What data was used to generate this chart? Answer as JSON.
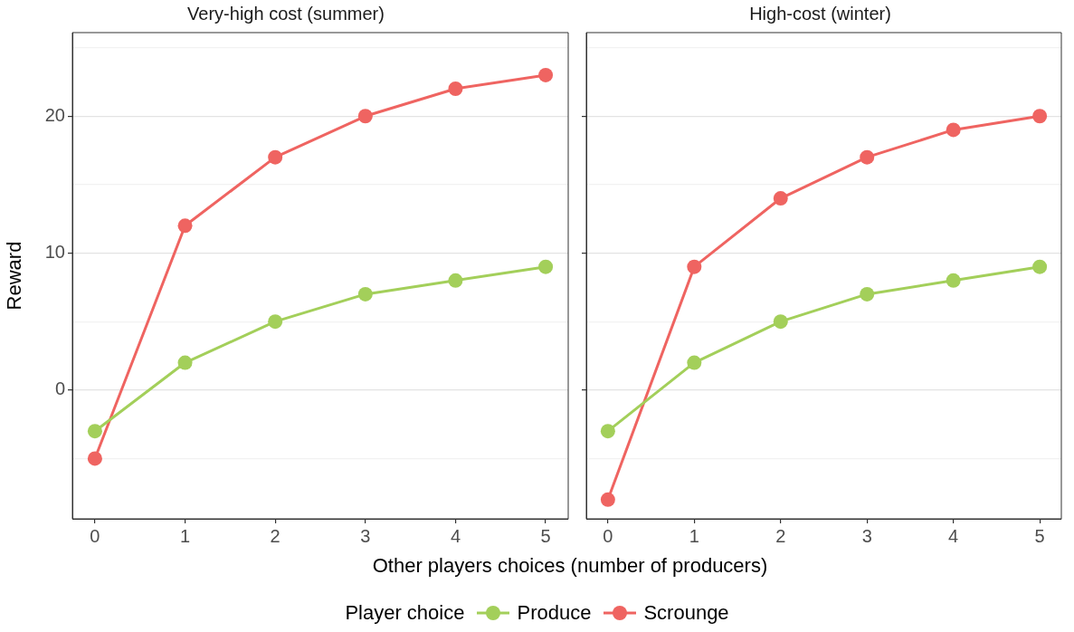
{
  "chart_data": [
    {
      "type": "line",
      "title": "Very-high cost (summer)",
      "xlabel": "Other players choices (number of producers)",
      "ylabel": "Reward",
      "legend_title": "Player choice",
      "legend": "bottom",
      "x": [
        0,
        1,
        2,
        3,
        4,
        5
      ],
      "series": [
        {
          "name": "Produce",
          "color": "#a3cf5a",
          "values": [
            -3,
            2,
            5,
            7,
            8,
            9
          ]
        },
        {
          "name": "Scrounge",
          "color": "#ef6461",
          "values": [
            -5,
            12,
            17,
            20,
            22,
            23
          ]
        }
      ],
      "xlim": [
        -0.25,
        5.25
      ],
      "xticks": [
        0,
        1,
        2,
        3,
        4,
        5
      ],
      "ylim": [
        -9.4,
        26.1
      ],
      "yticks": [
        {
          "value": -5,
          "label": null
        },
        0,
        {
          "value": 5,
          "label": null
        },
        10,
        {
          "value": 15,
          "label": null
        },
        20,
        {
          "value": 25,
          "label": null
        }
      ],
      "grid": "y",
      "marker": "circle",
      "line_style": "solid"
    },
    {
      "type": "line",
      "title": "High-cost (winter)",
      "x": [
        0,
        1,
        2,
        3,
        4,
        5
      ],
      "series": [
        {
          "color": "#a3cf5a",
          "values": [
            -3,
            2,
            5,
            7,
            8,
            9
          ]
        },
        {
          "color": "#ef6461",
          "values": [
            -8,
            9,
            14,
            17,
            19,
            20
          ]
        }
      ],
      "xlim": [
        -0.25,
        5.25
      ],
      "xticks": [
        0,
        1,
        2,
        3,
        4,
        5
      ],
      "ylim": [
        -9.4,
        26.1
      ],
      "yticks": [
        {
          "value": -5,
          "label": null
        },
        0,
        {
          "value": 5,
          "label": null
        },
        10,
        {
          "value": 15,
          "label": null
        },
        20,
        {
          "value": 25,
          "label": null
        }
      ],
      "grid": "y",
      "tick_labels": "x",
      "marker": "circle",
      "line_style": "solid"
    }
  ]
}
